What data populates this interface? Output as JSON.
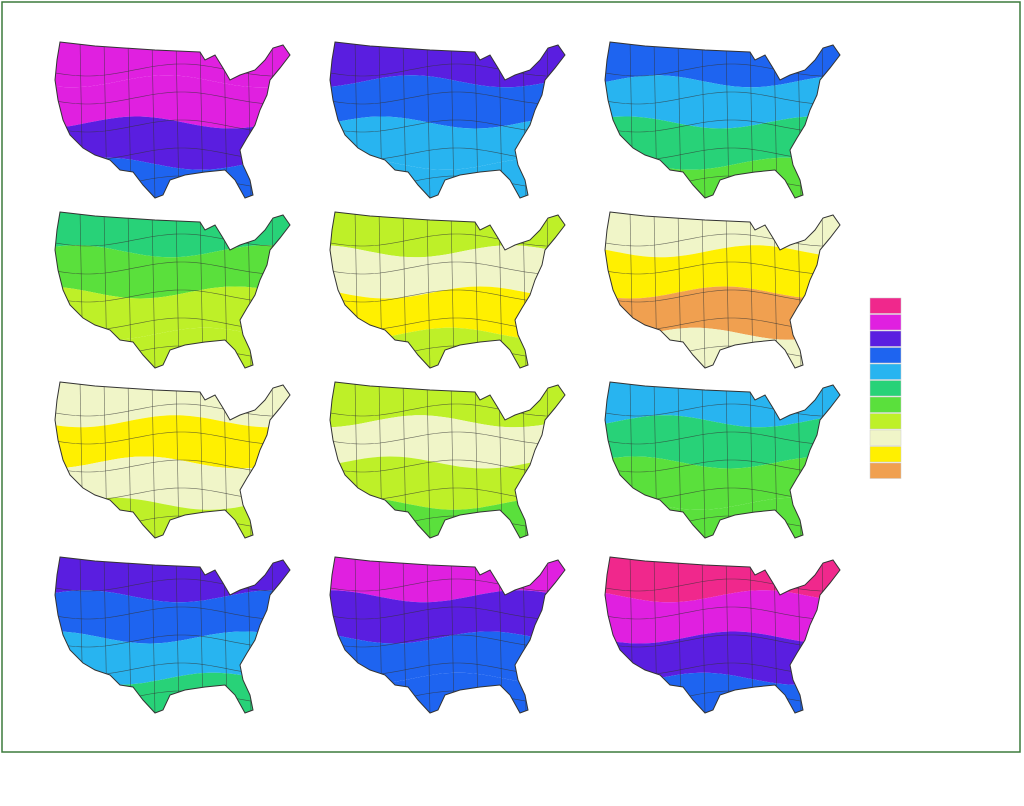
{
  "maps": [
    {
      "bands": [
        "#e020e0",
        "#e020e0",
        "#5a1ee0",
        "#1e64f0"
      ]
    },
    {
      "bands": [
        "#5a1ee0",
        "#1e64f0",
        "#28b4f0",
        "#28b4f0"
      ]
    },
    {
      "bands": [
        "#1e64f0",
        "#28b4f0",
        "#28d278",
        "#5ae03c"
      ]
    },
    {
      "bands": [
        "#28d278",
        "#5ae03c",
        "#bef028",
        "#bef028"
      ]
    },
    {
      "bands": [
        "#bef028",
        "#f0f5c8",
        "#fff000",
        "#bef028"
      ]
    },
    {
      "bands": [
        "#f0f5c8",
        "#fff000",
        "#f0a050",
        "#f0f5c8"
      ]
    },
    {
      "bands": [
        "#f0f5c8",
        "#fff000",
        "#f0f5c8",
        "#bef028"
      ]
    },
    {
      "bands": [
        "#bef028",
        "#f0f5c8",
        "#bef028",
        "#5ae03c"
      ]
    },
    {
      "bands": [
        "#28b4f0",
        "#28d278",
        "#5ae03c",
        "#5ae03c"
      ]
    },
    {
      "bands": [
        "#5a1ee0",
        "#1e64f0",
        "#28b4f0",
        "#28d278"
      ]
    },
    {
      "bands": [
        "#e020e0",
        "#5a1ee0",
        "#1e64f0",
        "#1e64f0"
      ]
    },
    {
      "bands": [
        "#f0288c",
        "#e020e0",
        "#5a1ee0",
        "#1e64f0"
      ]
    }
  ],
  "legend": {
    "colors": [
      "#f0288c",
      "#e020e0",
      "#5a1ee0",
      "#1e64f0",
      "#28b4f0",
      "#28d278",
      "#5ae03c",
      "#bef028",
      "#f0f5c8",
      "#fff000",
      "#f0a050"
    ]
  }
}
